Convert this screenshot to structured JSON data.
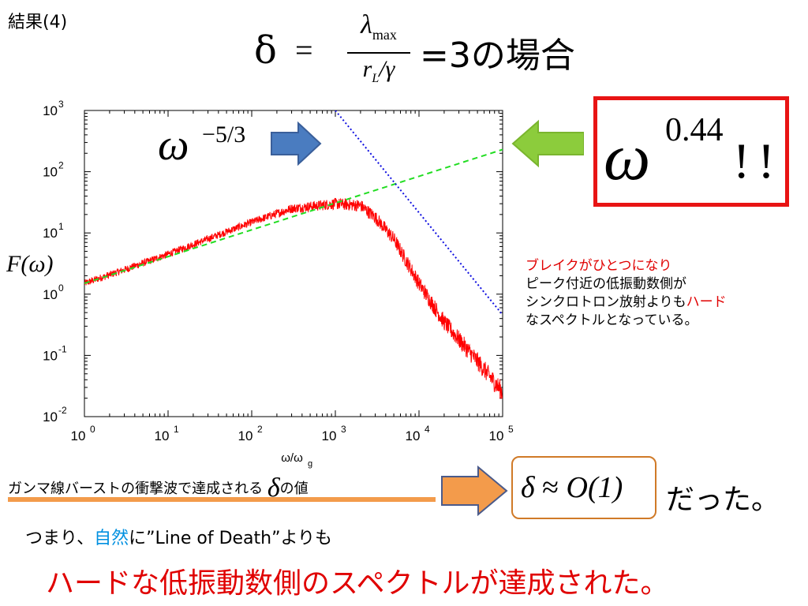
{
  "title": "結果(4)",
  "formula": {
    "delta": "δ",
    "equals": "=",
    "numerator_symbol": "λ",
    "numerator_sub": "max",
    "denominator_r": "r",
    "denominator_sub": "L",
    "denominator_rest": "/γ",
    "rest": "=3の場合"
  },
  "chart_data": {
    "type": "line",
    "x_scale": "log",
    "y_scale": "log",
    "xlim": [
      1,
      100000
    ],
    "ylim": [
      0.01,
      1000
    ],
    "xlabel": "ω/ω",
    "xlabel_sub": "g",
    "ylabel": "F(ω)",
    "x_ticks": [
      {
        "base": "10",
        "exp": "0",
        "value": 1
      },
      {
        "base": "10",
        "exp": "1",
        "value": 10
      },
      {
        "base": "10",
        "exp": "2",
        "value": 100
      },
      {
        "base": "10",
        "exp": "3",
        "value": 1000
      },
      {
        "base": "10",
        "exp": "4",
        "value": 10000
      },
      {
        "base": "10",
        "exp": "5",
        "value": 100000
      }
    ],
    "y_ticks": [
      {
        "base": "10",
        "exp": "-2",
        "value": 0.01
      },
      {
        "base": "10",
        "exp": "-1",
        "value": 0.1
      },
      {
        "base": "10",
        "exp": "0",
        "value": 1
      },
      {
        "base": "10",
        "exp": "1",
        "value": 10
      },
      {
        "base": "10",
        "exp": "2",
        "value": 100
      },
      {
        "base": "10",
        "exp": "3",
        "value": 1000
      }
    ],
    "series": [
      {
        "color": "#ff0000",
        "style": "solid-noisy",
        "x": [
          1,
          3,
          10,
          30,
          100,
          300,
          1000,
          2000,
          3000,
          5000,
          10000,
          20000,
          50000,
          100000
        ],
        "y": [
          1.5,
          2.5,
          4.5,
          8,
          15,
          25,
          30,
          28,
          18,
          8,
          1.5,
          0.35,
          0.08,
          0.025
        ]
      },
      {
        "color": "#22dd22",
        "style": "dashed",
        "x": [
          1,
          100000
        ],
        "y": [
          1.5,
          230
        ]
      },
      {
        "color": "#1010e0",
        "style": "dotted",
        "x": [
          1000,
          100000
        ],
        "y": [
          1000,
          0.46
        ]
      }
    ],
    "annotations": [
      {
        "label": "ω",
        "exponent": "−5/3"
      }
    ]
  },
  "omega_callout": {
    "base": "ω",
    "exponent": "0.44",
    "suffix": "!!"
  },
  "note": {
    "line1": "ブレイクがひとつになり",
    "line2": "ピーク付近の低振動数側が",
    "line3a": "シンクロトロン放射よりも",
    "line3b": "ハード",
    "line4": "なスペクトルとなっている。"
  },
  "gamma": {
    "text": "ガンマ線バーストの衝撃波で達成される",
    "delta": "δ",
    "suffix": "の値"
  },
  "result": {
    "delta": "δ",
    "approx": "≈",
    "value": "O(1)"
  },
  "datta": "だった。",
  "tsumari": {
    "a": "つまり、",
    "b": "自然",
    "c": "に”Line of Death”よりも"
  },
  "conclusion": "ハードな低振動数側のスペクトルが達成された。",
  "colors": {
    "arrow_blue": "#4a7cc0",
    "arrow_green": "#8ccc3c",
    "arrow_orange": "#f39b4b",
    "red": "#e00000"
  }
}
